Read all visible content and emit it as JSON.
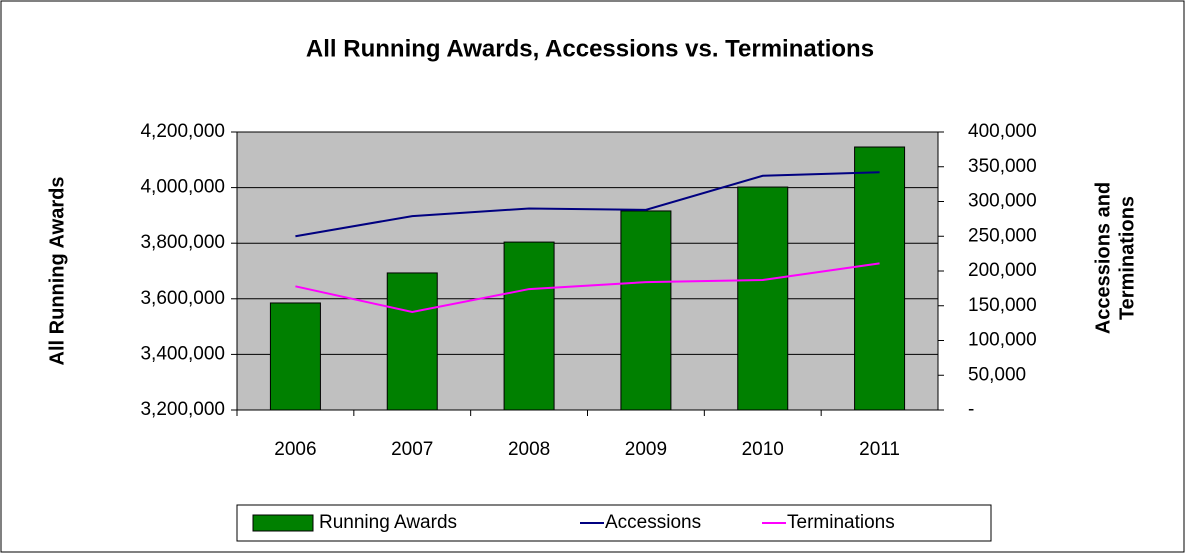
{
  "chart_data": {
    "type": "bar_line",
    "title": "All Running Awards, Accessions vs. Terminations",
    "ylabel": "All Running Awards",
    "y2label": [
      "Accessions and",
      "Terminations"
    ],
    "categories": [
      "2006",
      "2007",
      "2008",
      "2009",
      "2010",
      "2011"
    ],
    "series": [
      {
        "name": "Running Awards",
        "type": "bar",
        "color": "#008000",
        "values": [
          3585000,
          3693000,
          3804000,
          3916000,
          4002000,
          4146000
        ]
      },
      {
        "name": "Accessions",
        "type": "line",
        "axis": "y2",
        "color": "#000080",
        "values": [
          250000,
          279000,
          290000,
          288000,
          337000,
          342000
        ]
      },
      {
        "name": "Terminations",
        "type": "line",
        "axis": "y2",
        "color": "#ff00ff",
        "values": [
          178000,
          141000,
          174000,
          184000,
          187000,
          211000
        ]
      }
    ],
    "ylim": [
      3200000,
      4200000
    ],
    "yticks": [
      {
        "value": 3200000,
        "label": "3,200,000"
      },
      {
        "value": 3400000,
        "label": "3,400,000"
      },
      {
        "value": 3600000,
        "label": "3,600,000"
      },
      {
        "value": 3800000,
        "label": "3,800,000"
      },
      {
        "value": 4000000,
        "label": "4,000,000"
      },
      {
        "value": 4200000,
        "label": "4,200,000"
      }
    ],
    "y2lim": [
      0,
      400000
    ],
    "y2ticks": [
      {
        "value": 0,
        "label": "-"
      },
      {
        "value": 50000,
        "label": "50,000"
      },
      {
        "value": 100000,
        "label": "100,000"
      },
      {
        "value": 150000,
        "label": "150,000"
      },
      {
        "value": 200000,
        "label": "200,000"
      },
      {
        "value": 250000,
        "label": "250,000"
      },
      {
        "value": 300000,
        "label": "300,000"
      },
      {
        "value": 350000,
        "label": "350,000"
      },
      {
        "value": 400000,
        "label": "400,000"
      }
    ],
    "grid": true,
    "plot_background": "#c0c0c0",
    "legend": "bottom"
  }
}
